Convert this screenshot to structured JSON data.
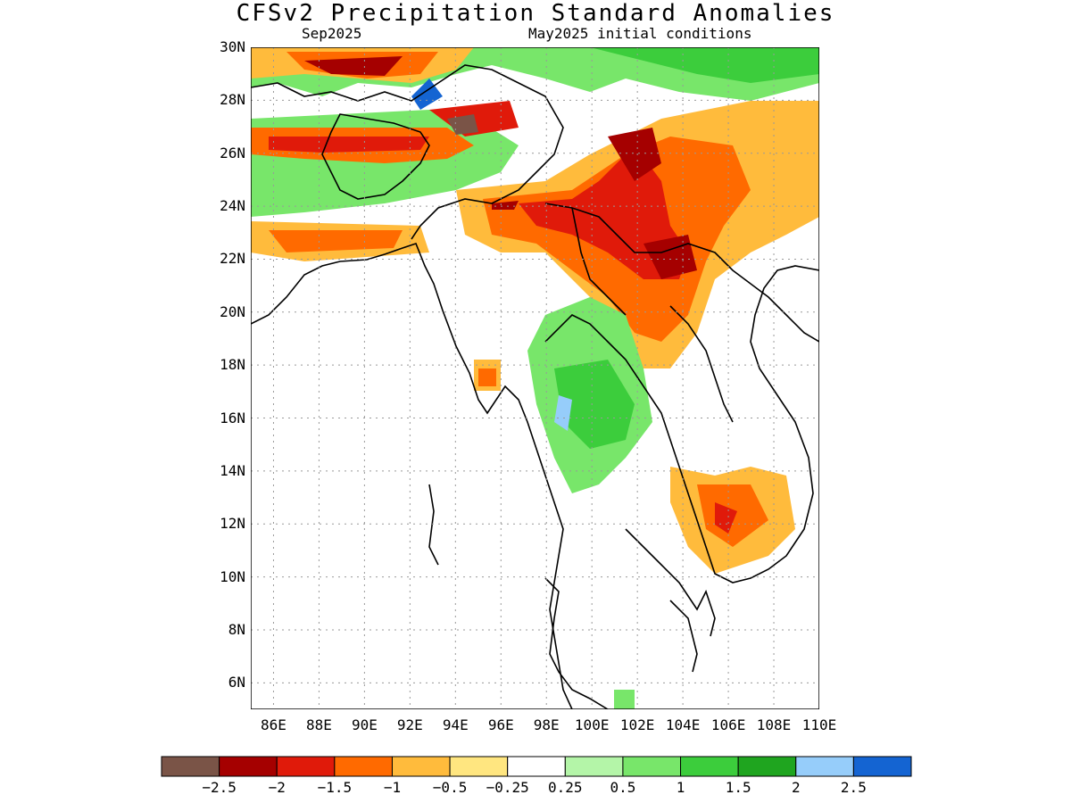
{
  "title": "CFSv2 Precipitation Standard Anomalies",
  "subtitle_left": "Sep2025",
  "subtitle_right": "May2025 initial conditions",
  "lat_labels": [
    "30N",
    "28N",
    "26N",
    "24N",
    "22N",
    "20N",
    "18N",
    "16N",
    "14N",
    "12N",
    "10N",
    "8N",
    "6N"
  ],
  "lon_labels": [
    "86E",
    "88E",
    "90E",
    "92E",
    "94E",
    "96E",
    "98E",
    "100E",
    "102E",
    "104E",
    "106E",
    "108E",
    "110E"
  ],
  "colorbar": {
    "labels": [
      "-2.5",
      "-2",
      "-1.5",
      "-1",
      "-0.5",
      "-0.25",
      "0.25",
      "0.5",
      "1",
      "1.5",
      "2",
      "2.5"
    ],
    "colors": [
      "#7a5447",
      "#a50000",
      "#e01a0a",
      "#ff6a00",
      "#ffbb3c",
      "#ffe680",
      "#ffffff",
      "#b4f5a8",
      "#78e66a",
      "#3ccd3c",
      "#1fa51f",
      "#96cdfa",
      "#1464d2"
    ]
  },
  "map": {
    "lat_range": [
      5,
      30
    ],
    "lon_range": [
      85,
      110
    ],
    "grid": "dotted"
  }
}
